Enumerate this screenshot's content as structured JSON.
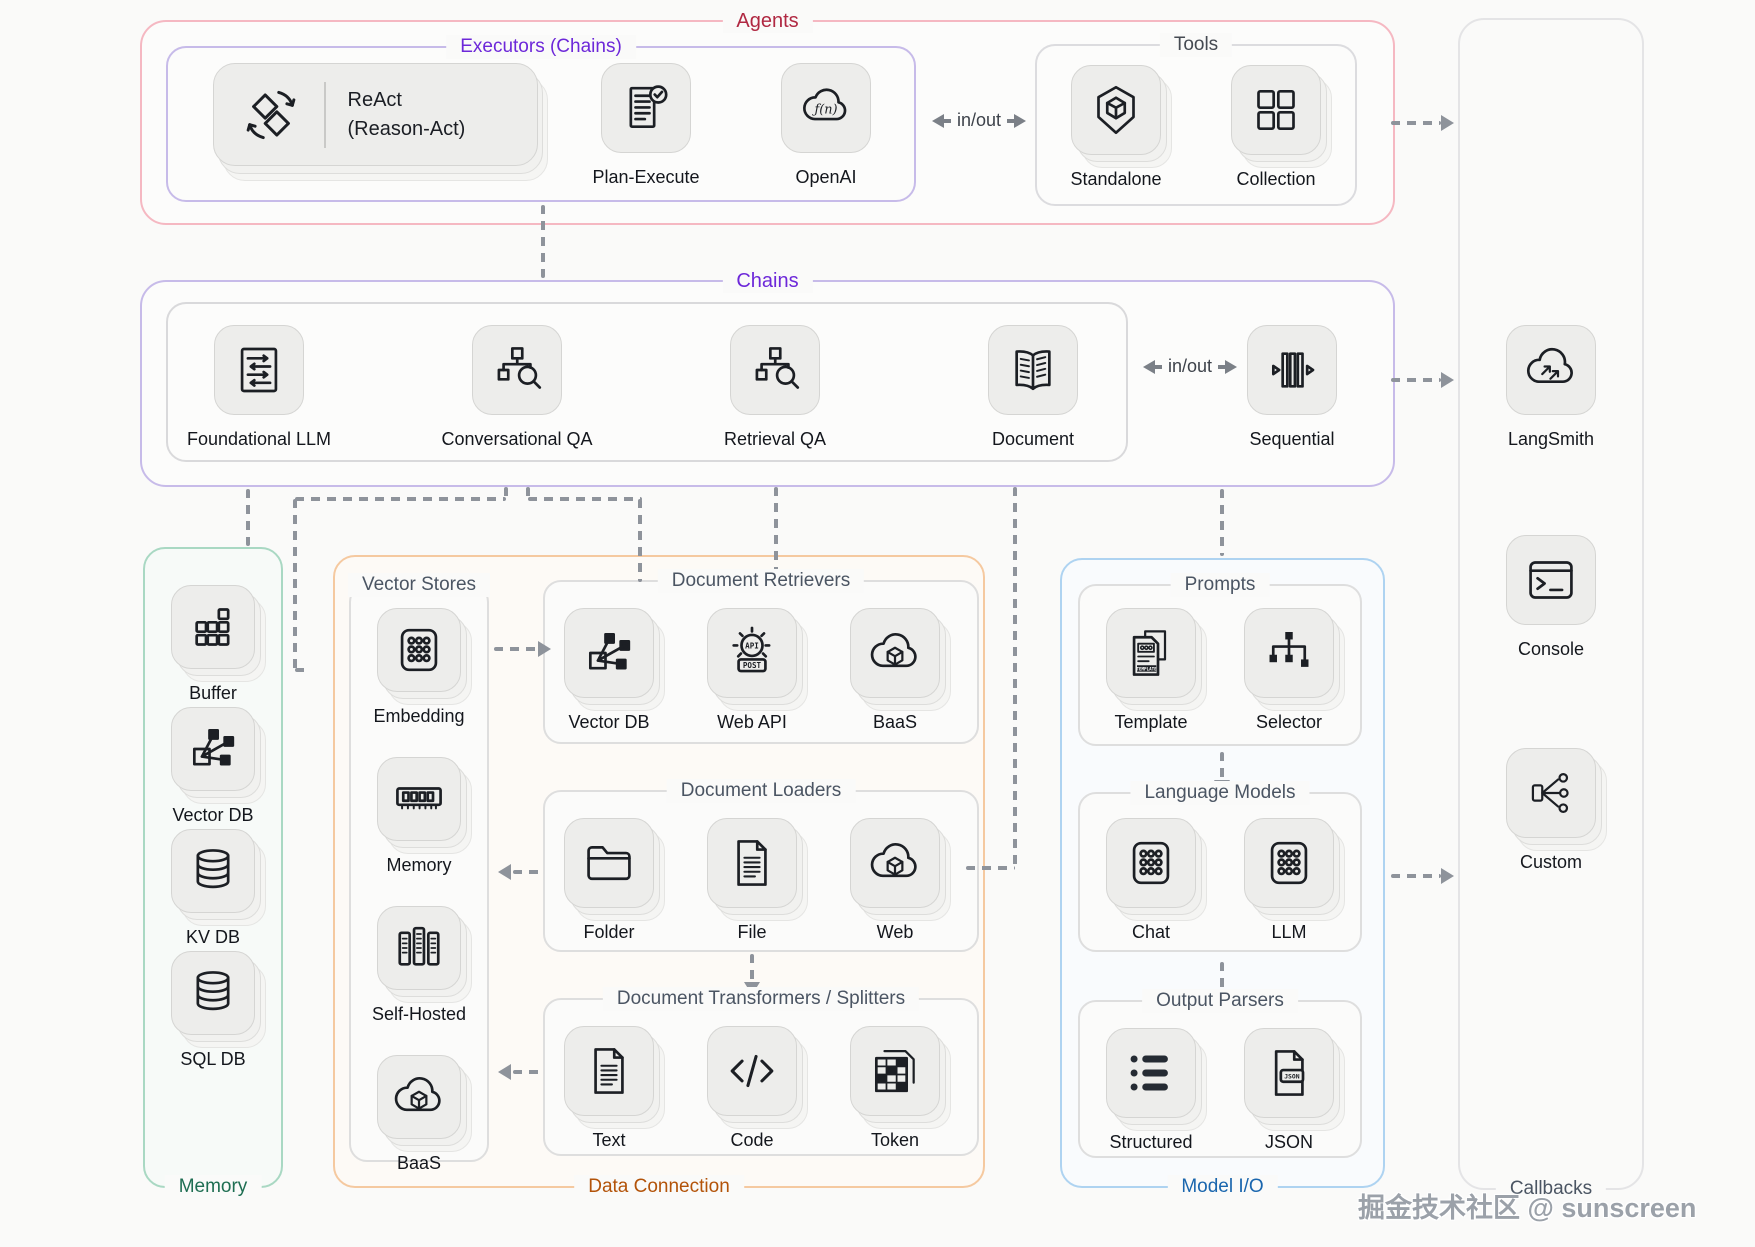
{
  "watermark": "掘金技术社区 @ sunscreen",
  "colors": {
    "agents_accent": "#b02842",
    "chains_accent": "#6d28d9",
    "memory_accent": "#1e6e52",
    "data_connection_accent": "#b35309",
    "model_io_accent": "#1a66ae",
    "sublabel_gray": "#4b5563",
    "connector_gray": "#8e939b"
  },
  "agents": {
    "label": "Agents"
  },
  "executors": {
    "label": "Executors (Chains)",
    "react": {
      "title": "ReAct",
      "subtitle": "(Reason-Act)",
      "icon": "react-cycle-icon"
    },
    "items": [
      {
        "label": "Plan-Execute",
        "icon": "plan-execute-icon",
        "stacked": false
      },
      {
        "label": "OpenAI",
        "icon": "fn-cloud-icon",
        "stacked": false
      }
    ]
  },
  "tools": {
    "label": "Tools",
    "items": [
      {
        "label": "Standalone",
        "icon": "package-cube-icon",
        "stacked": true
      },
      {
        "label": "Collection",
        "icon": "grid-collection-icon",
        "stacked": true
      }
    ]
  },
  "io_labels": {
    "agents_tools": "in/out",
    "chains_sequential": "in/out"
  },
  "chains": {
    "label": "Chains",
    "items": [
      {
        "label": "Foundational LLM",
        "icon": "document-arrows-icon",
        "stacked": false
      },
      {
        "label": "Conversational QA",
        "icon": "flow-search-icon",
        "stacked": false
      },
      {
        "label": "Retrieval QA",
        "icon": "flow-search-icon",
        "stacked": false
      },
      {
        "label": "Document",
        "icon": "open-book-icon",
        "stacked": false
      }
    ],
    "sequential": {
      "items": [
        {
          "label": "Sequential",
          "icon": "pipeline-icon",
          "stacked": false
        }
      ]
    }
  },
  "callbacks": {
    "label": "Callbacks",
    "items": [
      {
        "label": "LangSmith",
        "icon": "cloud-sync-icon",
        "stacked": false
      },
      {
        "label": "Console",
        "icon": "console-icon",
        "stacked": false
      },
      {
        "label": "Custom",
        "icon": "branch-icon",
        "stacked": true
      }
    ]
  },
  "memory": {
    "label": "Memory",
    "items": [
      {
        "label": "Buffer",
        "icon": "buffer-grid-icon",
        "stacked": true
      },
      {
        "label": "Vector DB",
        "icon": "vector-graph-icon",
        "stacked": true
      },
      {
        "label": "KV DB",
        "icon": "database-icon",
        "stacked": true
      },
      {
        "label": "SQL DB",
        "icon": "database-icon",
        "stacked": true
      }
    ]
  },
  "data_connection": {
    "label": "Data Connection",
    "vector_stores": {
      "label": "Vector Stores",
      "items": [
        {
          "label": "Embedding",
          "icon": "keypad-dots-icon",
          "stacked": true
        },
        {
          "label": "Memory",
          "icon": "ram-icon",
          "stacked": true
        },
        {
          "label": "Self-Hosted",
          "icon": "server-racks-icon",
          "stacked": true
        },
        {
          "label": "BaaS",
          "icon": "cloud-cube-icon",
          "stacked": true
        }
      ]
    },
    "document_retrievers": {
      "label": "Document Retrievers",
      "items": [
        {
          "label": "Vector DB",
          "icon": "vector-graph-icon",
          "stacked": true
        },
        {
          "label": "Web API",
          "icon": "api-gear-icon",
          "stacked": true
        },
        {
          "label": "BaaS",
          "icon": "cloud-cube-icon",
          "stacked": true
        }
      ]
    },
    "document_loaders": {
      "label": "Document Loaders",
      "items": [
        {
          "label": "Folder",
          "icon": "folder-icon",
          "stacked": true
        },
        {
          "label": "File",
          "icon": "file-lines-icon",
          "stacked": true
        },
        {
          "label": "Web",
          "icon": "cloud-cube-icon",
          "stacked": true
        }
      ]
    },
    "document_transformers": {
      "label": "Document Transformers / Splitters",
      "items": [
        {
          "label": "Text",
          "icon": "file-lines-icon",
          "stacked": true
        },
        {
          "label": "Code",
          "icon": "code-icon",
          "stacked": true
        },
        {
          "label": "Token",
          "icon": "token-grid-icon",
          "stacked": true
        }
      ]
    }
  },
  "model_io": {
    "label": "Model I/O",
    "prompts": {
      "label": "Prompts",
      "items": [
        {
          "label": "Template",
          "icon": "template-doc-icon",
          "stacked": true
        },
        {
          "label": "Selector",
          "icon": "selector-tree-icon",
          "stacked": true
        }
      ]
    },
    "language_models": {
      "label": "Language Models",
      "items": [
        {
          "label": "Chat",
          "icon": "keypad-dots-icon",
          "stacked": true
        },
        {
          "label": "LLM",
          "icon": "keypad-dots-icon",
          "stacked": true
        }
      ]
    },
    "output_parsers": {
      "label": "Output Parsers",
      "items": [
        {
          "label": "Structured",
          "icon": "structured-list-icon",
          "stacked": true
        },
        {
          "label": "JSON",
          "icon": "json-file-icon",
          "stacked": true
        }
      ]
    }
  }
}
